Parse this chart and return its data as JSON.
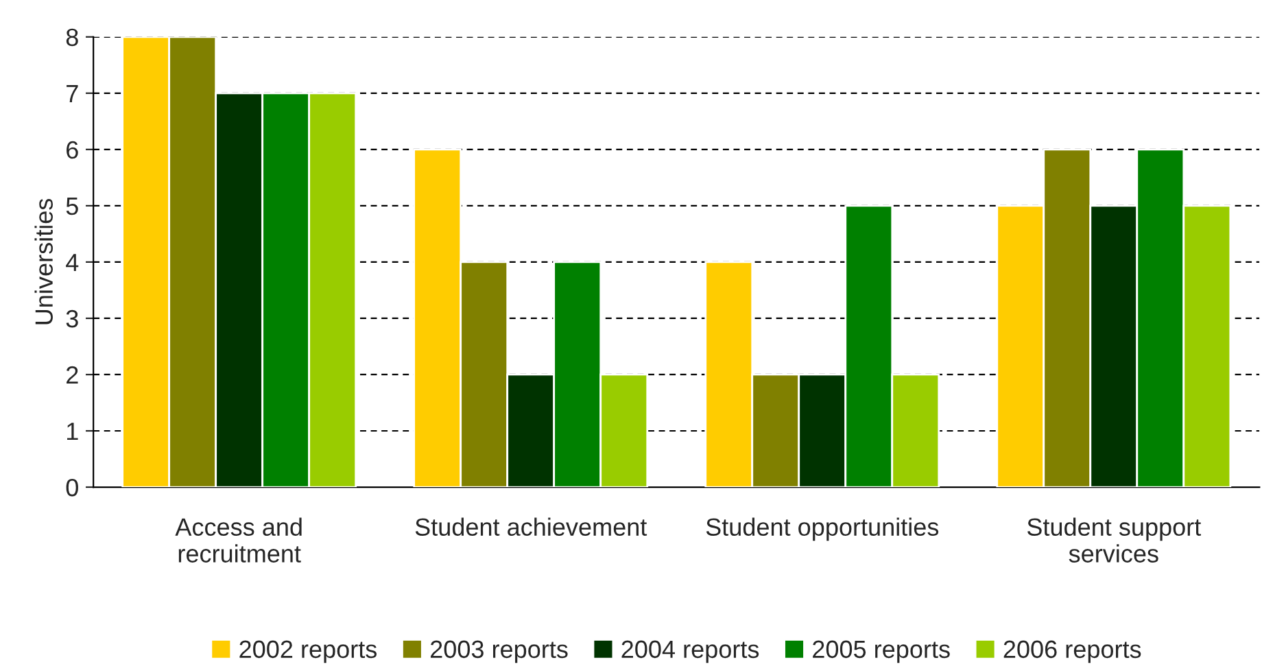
{
  "chart_data": {
    "type": "bar",
    "ylabel": "Universities",
    "categories": [
      "Access and\nrecruitment",
      "Student achievement",
      "Student opportunities",
      "Student support\nservices"
    ],
    "series": [
      {
        "name": "2002 reports",
        "color": "#ffcc00",
        "values": [
          8,
          6,
          4,
          5
        ]
      },
      {
        "name": "2003 reports",
        "color": "#808000",
        "values": [
          8,
          4,
          2,
          6
        ]
      },
      {
        "name": "2004 reports",
        "color": "#003300",
        "values": [
          7,
          2,
          2,
          5
        ]
      },
      {
        "name": "2005 reports",
        "color": "#008000",
        "values": [
          7,
          4,
          5,
          6
        ]
      },
      {
        "name": "2006 reports",
        "color": "#99cc00",
        "values": [
          7,
          2,
          2,
          5
        ]
      }
    ],
    "ylim": [
      0,
      8
    ],
    "yticks": [
      0,
      1,
      2,
      3,
      4,
      5,
      6,
      7,
      8
    ],
    "grid": "y",
    "legend": "bottom"
  }
}
